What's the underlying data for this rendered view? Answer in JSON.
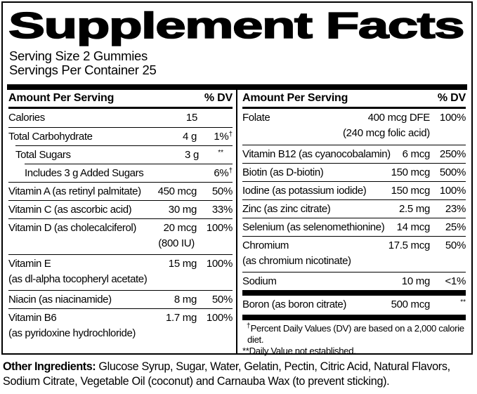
{
  "title": "Supplement Facts",
  "serving": {
    "size": "Serving Size 2 Gummies",
    "per_container": "Servings Per Container 25"
  },
  "columns": {
    "header_label": "Amount Per Serving",
    "dv_label": "% DV"
  },
  "left": {
    "rows": [
      {
        "name": "Calories",
        "amount": "15",
        "dv": ""
      },
      {
        "name": "Total Carbohydrate",
        "amount": "4 g",
        "dv": "1%",
        "dv_sup": "†"
      },
      {
        "name": "Total Sugars",
        "amount": "3 g",
        "dv": "",
        "dv_sup": "**"
      },
      {
        "name": "Includes 3 g Added Sugars",
        "amount": "",
        "dv": "6%",
        "dv_sup": "†"
      },
      {
        "name": "Vitamin A (as retinyl palmitate)",
        "amount": "450 mcg",
        "dv": "50%"
      },
      {
        "name": "Vitamin C (as ascorbic acid)",
        "amount": "30 mg",
        "dv": "33%"
      },
      {
        "name": "Vitamin D (as cholecalciferol)",
        "amount": "20 mcg",
        "amount2": "(800 IU)",
        "dv": "100%"
      },
      {
        "name": "Vitamin E",
        "name2": "(as dl-alpha tocopheryl acetate)",
        "amount": "15 mg",
        "dv": "100%"
      },
      {
        "name": "Niacin (as niacinamide)",
        "amount": "8 mg",
        "dv": "50%"
      },
      {
        "name": "Vitamin B6",
        "name2": "(as pyridoxine hydrochloride)",
        "amount": "1.7 mg",
        "dv": "100%"
      }
    ]
  },
  "right": {
    "rows": [
      {
        "name": "Folate",
        "amount": "400 mcg DFE",
        "amount2": "(240 mcg folic acid)",
        "dv": "100%"
      },
      {
        "name": "Vitamin B12 (as cyanocobalamin)",
        "amount": "6 mcg",
        "dv": "250%"
      },
      {
        "name": "Biotin (as D-biotin)",
        "amount": "150 mcg",
        "dv": "500%"
      },
      {
        "name": "Iodine (as potassium iodide)",
        "amount": "150 mcg",
        "dv": "100%"
      },
      {
        "name": "Zinc (as zinc citrate)",
        "amount": "2.5 mg",
        "dv": "23%"
      },
      {
        "name": "Selenium (as selenomethionine)",
        "amount": "14 mcg",
        "dv": "25%"
      },
      {
        "name": "Chromium",
        "name2": "(as chromium nicotinate)",
        "amount": "17.5 mcg",
        "dv": "50%"
      },
      {
        "name": "Sodium",
        "amount": "10 mg",
        "dv": "<1%"
      },
      {
        "name": "Boron (as boron citrate)",
        "amount": "500 mcg",
        "dv": "",
        "dv_sup": "**"
      }
    ],
    "footnotes": [
      {
        "sup": "†",
        "text": "Percent Daily Values (DV) are based on a 2,000 calorie diet."
      },
      {
        "sup": "",
        "text": "**Daily Value not established."
      }
    ]
  },
  "other_ingredients": {
    "label": "Other Ingredients:",
    "text": "Glucose Syrup, Sugar, Water, Gelatin, Pectin, Citric Acid, Natural Flavors, Sodium Citrate, Vegetable Oil (coconut) and Carnauba Wax (to prevent sticking)."
  },
  "colors": {
    "ink": "#000000",
    "background": "#ffffff"
  }
}
